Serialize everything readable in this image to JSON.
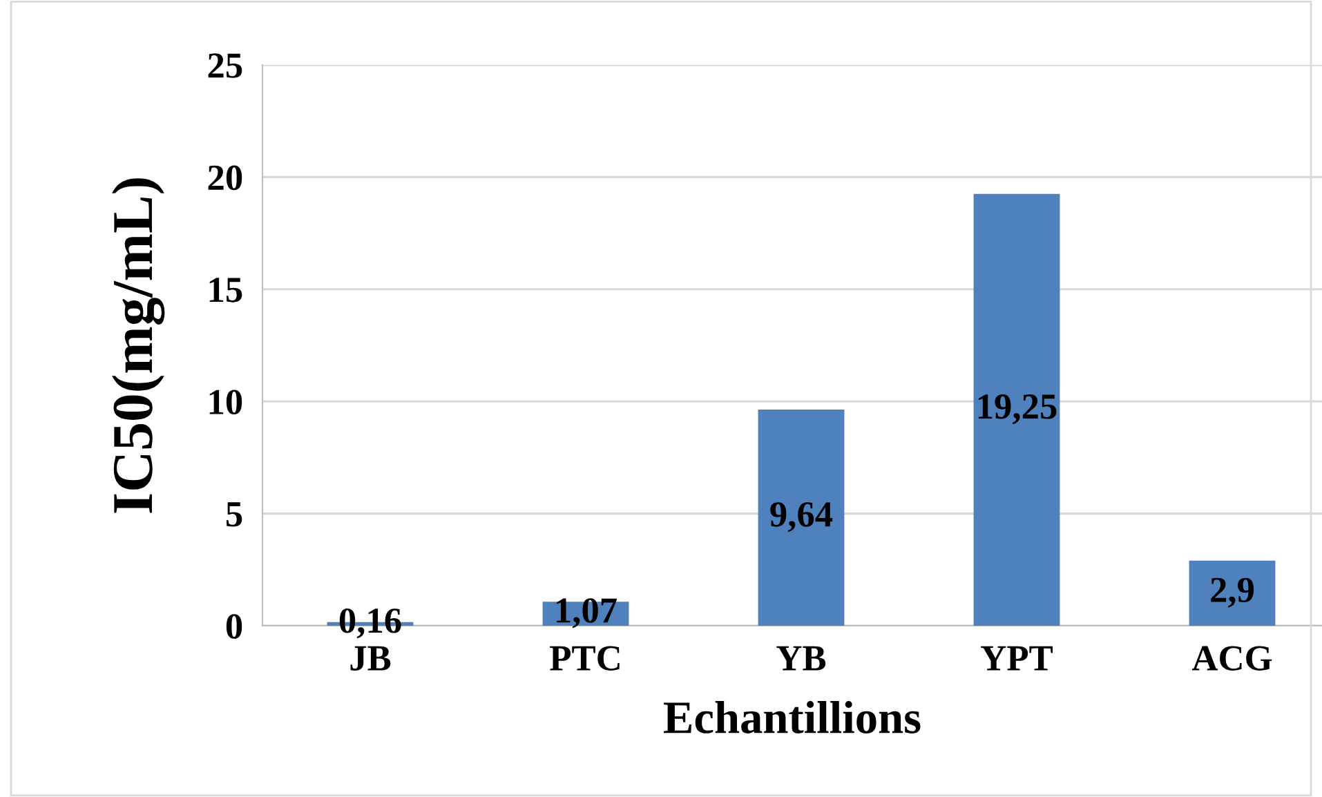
{
  "chart_data": {
    "type": "bar",
    "xlabel": "Echantillions",
    "ylabel": "IC50(mg/mL)",
    "categories": [
      "JB",
      "PTC",
      "YB",
      "YPT",
      "ACG"
    ],
    "values": [
      0.16,
      1.07,
      9.64,
      19.25,
      2.9
    ],
    "value_labels": [
      "0,16",
      "1,07",
      "9,64",
      "19,25",
      "2,9"
    ],
    "color": "#4f81bd",
    "ylim": [
      0,
      25
    ],
    "yticks": [
      0,
      5,
      10,
      15,
      20,
      25
    ],
    "grid": "y",
    "legend": false
  }
}
